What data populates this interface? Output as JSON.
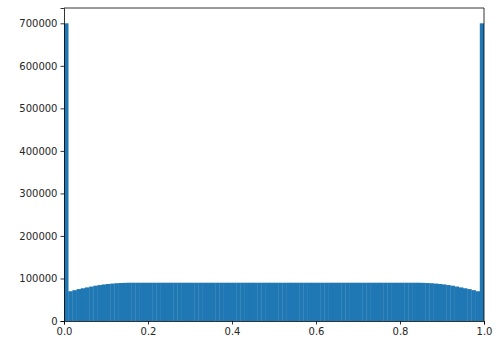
{
  "chart_data": {
    "type": "histogram",
    "bins": [
      0,
      0.01,
      0.02,
      0.03,
      0.04,
      0.05,
      0.06,
      0.07,
      0.08,
      0.09,
      0.1,
      0.11,
      0.12,
      0.13,
      0.14,
      0.15,
      0.16,
      0.17,
      0.18,
      0.19,
      0.2,
      0.21,
      0.22,
      0.23,
      0.24,
      0.25,
      0.26,
      0.27,
      0.28,
      0.29,
      0.3,
      0.31,
      0.32,
      0.33,
      0.34,
      0.35,
      0.36,
      0.37,
      0.38,
      0.39,
      0.4,
      0.41,
      0.42,
      0.43,
      0.44,
      0.45,
      0.46,
      0.47,
      0.48,
      0.49,
      0.5,
      0.51,
      0.52,
      0.53,
      0.54,
      0.55,
      0.56,
      0.57,
      0.58,
      0.59,
      0.6,
      0.61,
      0.62,
      0.63,
      0.64,
      0.65,
      0.66,
      0.67,
      0.68,
      0.69,
      0.7,
      0.71,
      0.72,
      0.73,
      0.74,
      0.75,
      0.76,
      0.77,
      0.78,
      0.79,
      0.8,
      0.81,
      0.82,
      0.83,
      0.84,
      0.85,
      0.86,
      0.87,
      0.88,
      0.89,
      0.9,
      0.91,
      0.92,
      0.93,
      0.94,
      0.95,
      0.96,
      0.97,
      0.98,
      0.99,
      1
    ],
    "values": [
      700000,
      70000,
      72500,
      75000,
      77000,
      79000,
      81000,
      83000,
      84500,
      86000,
      87000,
      88000,
      88800,
      89300,
      89700,
      90000,
      90000,
      90000,
      90000,
      90000,
      90000,
      90000,
      90000,
      90000,
      90000,
      90000,
      90000,
      90000,
      90000,
      90000,
      90000,
      90000,
      90000,
      90000,
      90000,
      90000,
      90000,
      90000,
      90000,
      90000,
      90000,
      90000,
      90000,
      90000,
      90000,
      90000,
      90000,
      90000,
      90000,
      90000,
      90000,
      90000,
      90000,
      90000,
      90000,
      90000,
      90000,
      90000,
      90000,
      90000,
      90000,
      90000,
      90000,
      90000,
      90000,
      90000,
      90000,
      90000,
      90000,
      90000,
      90000,
      90000,
      90000,
      90000,
      90000,
      90000,
      90000,
      90000,
      90000,
      90000,
      90000,
      90000,
      90000,
      90000,
      90000,
      89700,
      89300,
      88800,
      88000,
      87000,
      86000,
      84500,
      83000,
      81000,
      79000,
      77000,
      75000,
      72500,
      70000,
      700000
    ],
    "color": "#1f77b4",
    "xlim": [
      0,
      1
    ],
    "xticks": [
      {
        "value": 0,
        "label": "0.0"
      },
      0.2,
      0.4,
      0.6,
      0.8,
      {
        "value": 1,
        "label": "1.0"
      }
    ],
    "ylim": [
      0,
      736000
    ],
    "yticks": [
      0,
      100000,
      200000,
      300000,
      400000,
      500000,
      600000,
      700000
    ]
  }
}
